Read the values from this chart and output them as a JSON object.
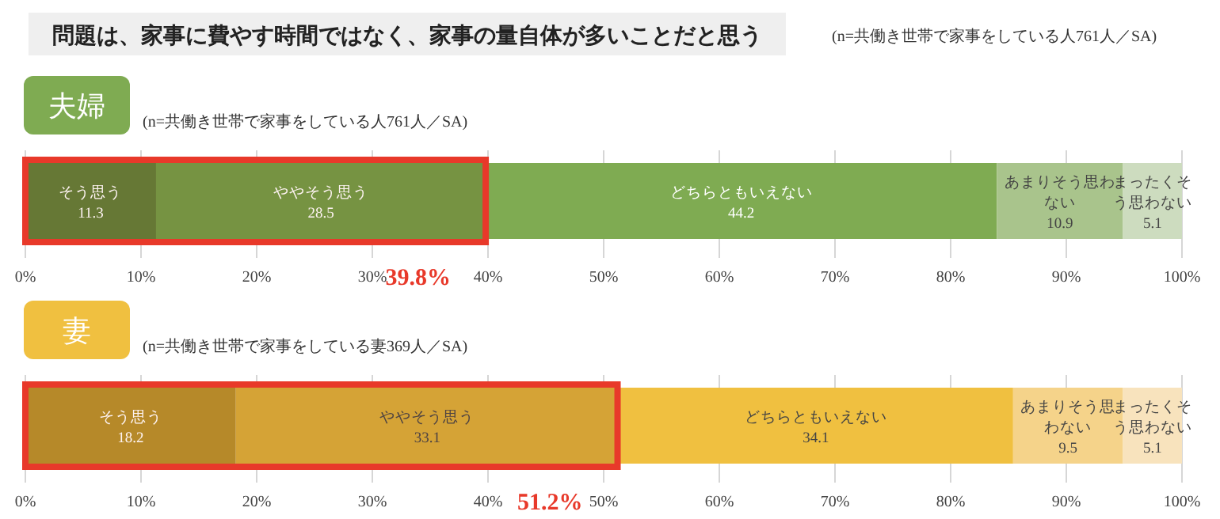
{
  "chart_data": [
    {
      "type": "bar",
      "orientation": "horizontal",
      "stacked": true,
      "title": "問題は、家事に費やす時間ではなく、家事の量自体が多いことだと思う",
      "subtitle": "夫婦",
      "annotations": [
        "(n=共働き世帯で家事をしている人761人／SA)",
        "(n=共働き世帯で家事をしている人761人／SA)"
      ],
      "categories": [
        null
      ],
      "series": [
        {
          "name": "そう思う",
          "color": "#5e7d37",
          "values": [
            11.3
          ]
        },
        {
          "name": "ややそう思う",
          "color": "#6f9a45",
          "values": [
            28.5
          ]
        },
        {
          "name": "どちらともいえない",
          "color": "#7fab52",
          "values": [
            44.2
          ]
        },
        {
          "name": "あまりそう思わない",
          "color": "#a9c48c",
          "values": [
            10.9
          ]
        },
        {
          "name": "まったくそう思わない",
          "color": "#cddcbf",
          "values": [
            5.1
          ]
        }
      ],
      "data_labels": true,
      "legend": false,
      "grid": "x",
      "xlim": [
        0,
        100
      ],
      "xticks": [
        {
          "value": 0,
          "label": "0%"
        },
        {
          "value": 10,
          "label": "10%"
        },
        {
          "value": 20,
          "label": "20%"
        },
        {
          "value": 30,
          "label": "30%"
        },
        {
          "value": 40,
          "label": "40%"
        },
        {
          "value": 50,
          "label": "50%"
        },
        {
          "value": 60,
          "label": "60%"
        },
        {
          "value": 70,
          "label": "70%"
        },
        {
          "value": 80,
          "label": "80%"
        },
        {
          "value": 90,
          "label": "90%"
        },
        {
          "value": 100,
          "label": "100%"
        }
      ],
      "bands": [
        {
          "axis": "x",
          "from": 0,
          "to": 39.8,
          "label": "39.8%",
          "color": "#e8392a"
        }
      ]
    },
    {
      "type": "bar",
      "orientation": "horizontal",
      "stacked": true,
      "subtitle": "妻",
      "annotations": [
        "(n=共働き世帯で家事をしている妻369人／SA)"
      ],
      "categories": [
        null
      ],
      "series": [
        {
          "name": "そう思う",
          "color": "#b38f2a",
          "values": [
            18.2
          ]
        },
        {
          "name": "ややそう思う",
          "color": "#d4aa38",
          "values": [
            33.1
          ]
        },
        {
          "name": "どちらともいえない",
          "color": "#f0c040",
          "values": [
            34.1
          ]
        },
        {
          "name": "あまりそう思わない",
          "color": "#f5d38a",
          "values": [
            9.5
          ]
        },
        {
          "name": "まったくそう思わない",
          "color": "#f8e3bd",
          "values": [
            5.1
          ]
        }
      ],
      "data_labels": true,
      "legend": false,
      "grid": "x",
      "xlim": [
        0,
        100
      ],
      "xticks": [
        {
          "value": 0,
          "label": "0%"
        },
        {
          "value": 10,
          "label": "10%"
        },
        {
          "value": 20,
          "label": "20%"
        },
        {
          "value": 30,
          "label": "30%"
        },
        {
          "value": 40,
          "label": "40%"
        },
        {
          "value": 50,
          "label": "50%"
        },
        {
          "value": 60,
          "label": "60%"
        },
        {
          "value": 70,
          "label": "70%"
        },
        {
          "value": 80,
          "label": "80%"
        },
        {
          "value": 90,
          "label": "90%"
        },
        {
          "value": 100,
          "label": "100%"
        }
      ],
      "bands": [
        {
          "axis": "x",
          "from": 0,
          "to": 51.2,
          "label": "51.2%",
          "color": "#e8392a"
        }
      ]
    }
  ]
}
